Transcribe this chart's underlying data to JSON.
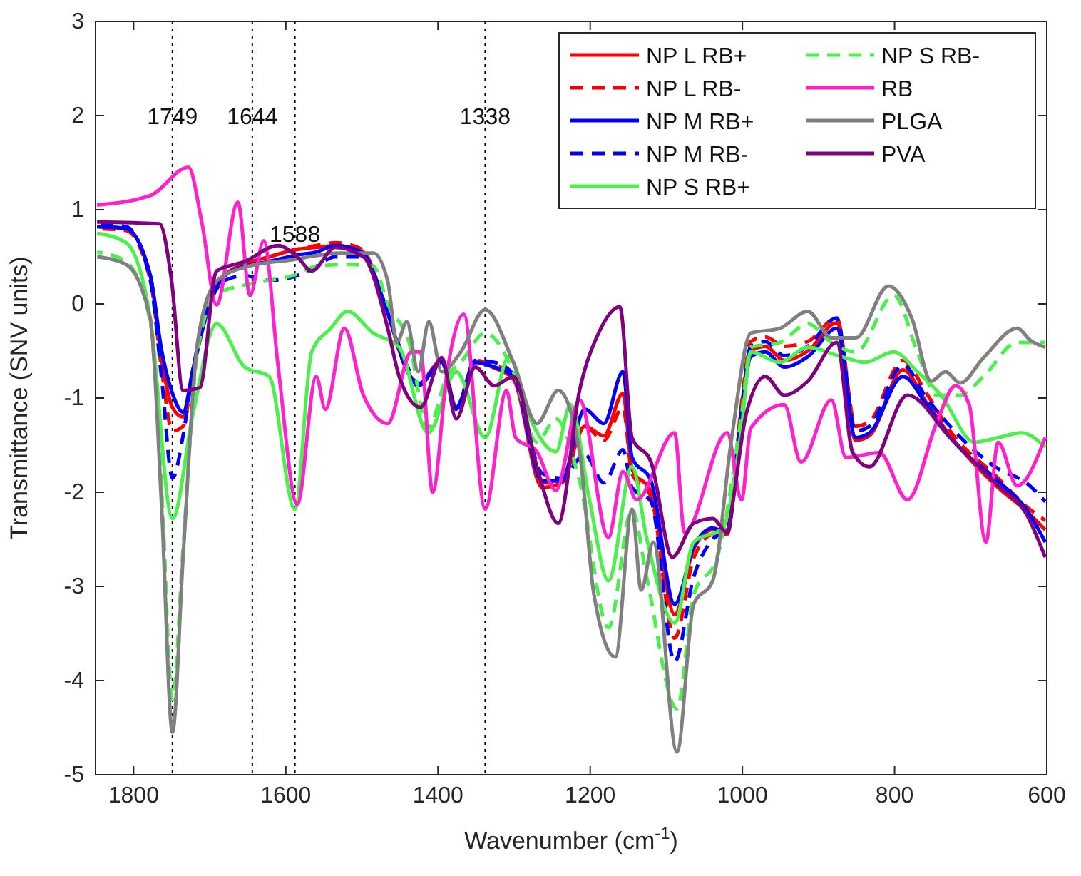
{
  "chart_data": {
    "type": "line",
    "xlabel": "Wavenumber (cm$^{-1}$)",
    "ylabel": "Transmittance (SNV units)",
    "xlim": [
      1850,
      600
    ],
    "xticks": [
      1800,
      1600,
      1400,
      1200,
      1000,
      800,
      600
    ],
    "ylim": [
      -5,
      3
    ],
    "yticks": [
      -5,
      -4,
      -3,
      -2,
      -1,
      0,
      1,
      2,
      3
    ],
    "grid": false,
    "legend": "top right",
    "marker": "none",
    "ref_lines": [
      {
        "axis": "x",
        "value": 1749,
        "color": "#000000",
        "line_style": "dotted"
      },
      {
        "axis": "x",
        "value": 1644,
        "color": "#000000",
        "line_style": "dotted"
      },
      {
        "axis": "x",
        "value": 1588,
        "color": "#000000",
        "line_style": "dotted"
      },
      {
        "axis": "x",
        "value": 1338,
        "color": "#000000",
        "line_style": "dotted"
      }
    ],
    "annotations": [
      {
        "text": "1749",
        "x": 1749,
        "y": 2
      },
      {
        "text": "1644",
        "x": 1644,
        "y": 2
      },
      {
        "text": "1588",
        "x": 1588,
        "y": 0.75
      },
      {
        "text": "1338",
        "x": 1338,
        "y": 2
      }
    ],
    "series": [
      {
        "name": "NP L RB+",
        "color": "#ff0000",
        "line_style": "solid",
        "x": [
          1848,
          1810,
          1778,
          1763,
          1749,
          1735,
          1722,
          1700,
          1680,
          1654,
          1622,
          1585,
          1560,
          1535,
          1500,
          1470,
          1441,
          1426,
          1395,
          1376,
          1351,
          1326,
          1301,
          1263,
          1238,
          1207,
          1182,
          1157,
          1145,
          1120,
          1089,
          1064,
          1039,
          1020,
          1001,
          989,
          970,
          945,
          914,
          876,
          851,
          833,
          789,
          758,
          727,
          664,
          627,
          602
        ],
        "values": [
          0.82,
          0.8,
          0.3,
          -0.6,
          -1.1,
          -1.2,
          -0.7,
          0.0,
          0.3,
          0.42,
          0.5,
          0.58,
          0.6,
          0.62,
          0.56,
          0.0,
          -0.7,
          -0.85,
          -0.6,
          -1.1,
          -0.62,
          -0.68,
          -0.8,
          -1.95,
          -1.9,
          -1.3,
          -1.4,
          -0.95,
          -1.75,
          -2.0,
          -3.3,
          -2.6,
          -2.4,
          -2.4,
          -1.1,
          -0.5,
          -0.45,
          -0.6,
          -0.5,
          -0.2,
          -1.45,
          -1.4,
          -0.7,
          -1.05,
          -1.4,
          -1.95,
          -2.2,
          -2.4
        ]
      },
      {
        "name": "NP L RB-",
        "color": "#ff0000",
        "line_style": "dashed",
        "x": [
          1848,
          1810,
          1778,
          1763,
          1749,
          1735,
          1722,
          1700,
          1680,
          1654,
          1622,
          1585,
          1560,
          1535,
          1500,
          1470,
          1441,
          1426,
          1395,
          1376,
          1351,
          1326,
          1301,
          1263,
          1238,
          1207,
          1182,
          1157,
          1145,
          1120,
          1089,
          1064,
          1039,
          1020,
          1001,
          989,
          970,
          945,
          914,
          876,
          851,
          833,
          789,
          758,
          727,
          664,
          627,
          602
        ],
        "values": [
          0.8,
          0.78,
          0.25,
          -0.7,
          -1.35,
          -1.3,
          -0.7,
          0.0,
          0.3,
          0.42,
          0.5,
          0.58,
          0.62,
          0.65,
          0.58,
          0.0,
          -0.7,
          -0.85,
          -0.6,
          -1.1,
          -0.6,
          -0.65,
          -0.75,
          -1.9,
          -1.9,
          -1.3,
          -1.45,
          -1.1,
          -1.8,
          -2.05,
          -3.55,
          -2.7,
          -2.45,
          -2.45,
          -1.05,
          -0.4,
          -0.35,
          -0.45,
          -0.4,
          -0.15,
          -1.3,
          -1.25,
          -0.6,
          -0.95,
          -1.35,
          -1.85,
          -2.15,
          -2.3
        ]
      },
      {
        "name": "NP M RB+",
        "color": "#0000ff",
        "line_style": "solid",
        "x": [
          1848,
          1810,
          1778,
          1763,
          1749,
          1735,
          1722,
          1700,
          1680,
          1654,
          1622,
          1585,
          1560,
          1535,
          1500,
          1470,
          1441,
          1426,
          1395,
          1376,
          1351,
          1326,
          1301,
          1263,
          1238,
          1207,
          1182,
          1157,
          1145,
          1120,
          1089,
          1064,
          1039,
          1020,
          1001,
          989,
          970,
          945,
          914,
          876,
          851,
          833,
          789,
          758,
          727,
          664,
          627,
          602
        ],
        "values": [
          0.82,
          0.8,
          0.3,
          -0.5,
          -0.95,
          -1.15,
          -0.7,
          0.0,
          0.3,
          0.4,
          0.45,
          0.52,
          0.55,
          0.62,
          0.55,
          0.0,
          -0.7,
          -0.87,
          -0.62,
          -1.12,
          -0.62,
          -0.67,
          -0.77,
          -1.88,
          -1.88,
          -1.12,
          -1.27,
          -0.72,
          -1.63,
          -1.88,
          -3.19,
          -2.58,
          -2.38,
          -2.43,
          -1.17,
          -0.56,
          -0.51,
          -0.67,
          -0.56,
          -0.26,
          -1.42,
          -1.37,
          -0.77,
          -1.07,
          -1.42,
          -1.88,
          -2.18,
          -2.53
        ]
      },
      {
        "name": "NP M RB-",
        "color": "#0000ff",
        "line_style": "dashed",
        "x": [
          1848,
          1810,
          1778,
          1763,
          1749,
          1735,
          1722,
          1700,
          1680,
          1654,
          1622,
          1585,
          1560,
          1535,
          1500,
          1470,
          1441,
          1426,
          1395,
          1376,
          1351,
          1326,
          1301,
          1263,
          1238,
          1207,
          1182,
          1157,
          1145,
          1120,
          1089,
          1064,
          1039,
          1020,
          1001,
          989,
          970,
          945,
          914,
          876,
          851,
          833,
          789,
          758,
          727,
          664,
          627,
          602
        ],
        "values": [
          0.85,
          0.82,
          0.25,
          -0.8,
          -1.85,
          -1.4,
          -0.7,
          0.0,
          0.25,
          0.3,
          0.25,
          0.3,
          0.4,
          0.5,
          0.5,
          0.0,
          -0.65,
          -0.85,
          -0.62,
          -1.1,
          -0.6,
          -0.62,
          -0.75,
          -1.8,
          -1.85,
          -1.6,
          -1.9,
          -1.55,
          -1.95,
          -2.1,
          -3.8,
          -2.9,
          -2.5,
          -2.4,
          -1.1,
          -0.45,
          -0.4,
          -0.55,
          -0.45,
          -0.15,
          -1.35,
          -1.3,
          -0.65,
          -1.0,
          -1.3,
          -1.75,
          -1.9,
          -2.1
        ]
      },
      {
        "name": "NP S RB+",
        "color": "#4cf04c",
        "line_style": "solid",
        "x": [
          1848,
          1810,
          1778,
          1749,
          1722,
          1691,
          1654,
          1622,
          1588,
          1566,
          1541,
          1519,
          1485,
          1451,
          1413,
          1376,
          1338,
          1307,
          1276,
          1245,
          1226,
          1201,
          1176,
          1145,
          1126,
          1089,
          1064,
          1026,
          1001,
          989,
          951,
          914,
          870,
          839,
          801,
          770,
          739,
          695,
          664,
          633,
          602
        ],
        "values": [
          0.75,
          0.65,
          -0.16,
          -2.28,
          -1.17,
          -0.21,
          -0.67,
          -0.77,
          -2.18,
          -0.51,
          -0.26,
          -0.08,
          -0.31,
          -0.46,
          -1.37,
          -0.72,
          -1.42,
          -0.56,
          -1.27,
          -1.57,
          -1.07,
          -2.08,
          -2.94,
          -1.73,
          -2.48,
          -3.39,
          -2.53,
          -2.38,
          -1.32,
          -0.51,
          -0.62,
          -0.46,
          -0.56,
          -0.62,
          -0.51,
          -0.72,
          -0.97,
          -1.47,
          -1.42,
          -1.37,
          -1.52
        ]
      },
      {
        "name": "NP S RB-",
        "color": "#4cf04c",
        "line_style": "dashed",
        "x": [
          1848,
          1810,
          1778,
          1763,
          1749,
          1735,
          1716,
          1691,
          1654,
          1622,
          1591,
          1560,
          1520,
          1485,
          1466,
          1438,
          1413,
          1388,
          1370,
          1338,
          1301,
          1270,
          1245,
          1214,
          1176,
          1145,
          1126,
          1086,
          1064,
          1033,
          1001,
          989,
          951,
          914,
          883,
          851,
          801,
          770,
          745,
          714,
          683,
          639,
          602
        ],
        "values": [
          0.55,
          0.45,
          -0.2,
          -2.0,
          -4.2,
          -2.6,
          -0.5,
          0.1,
          0.2,
          0.25,
          0.3,
          0.4,
          0.42,
          0.4,
          0.0,
          -0.41,
          -1.32,
          -0.77,
          -0.62,
          -0.31,
          -0.72,
          -1.47,
          -1.22,
          -1.88,
          -3.44,
          -2.18,
          -2.89,
          -4.3,
          -3.09,
          -2.69,
          -1.17,
          -0.46,
          -0.41,
          -0.21,
          -0.41,
          -0.51,
          0.09,
          -0.51,
          -0.97,
          -0.97,
          -0.77,
          -0.41,
          -0.41
        ]
      },
      {
        "name": "RB",
        "color": "#ff22cc",
        "line_style": "solid",
        "x": [
          1848,
          1778,
          1728,
          1710,
          1691,
          1663,
          1647,
          1629,
          1610,
          1585,
          1560,
          1548,
          1523,
          1498,
          1466,
          1435,
          1423,
          1407,
          1388,
          1366,
          1338,
          1310,
          1298,
          1270,
          1245,
          1214,
          1176,
          1157,
          1139,
          1089,
          1076,
          1020,
          1001,
          989,
          945,
          923,
          883,
          864,
          820,
          783,
          745,
          720,
          702,
          680,
          664,
          639,
          602
        ],
        "values": [
          1.05,
          1.15,
          1.45,
          0.85,
          -0.01,
          1.08,
          0.09,
          0.67,
          -0.67,
          -2.13,
          -0.77,
          -1.12,
          -0.26,
          -0.97,
          -1.27,
          -0.51,
          -0.51,
          -2.0,
          -0.72,
          -0.11,
          -2.18,
          -0.92,
          -1.42,
          -1.57,
          -1.98,
          -1.02,
          -2.48,
          -1.78,
          -2.08,
          -1.37,
          -2.43,
          -1.37,
          -2.08,
          -1.32,
          -1.07,
          -1.68,
          -1.02,
          -1.63,
          -1.58,
          -2.08,
          -1.27,
          -0.87,
          -1.07,
          -2.53,
          -1.47,
          -1.93,
          -1.42
        ]
      },
      {
        "name": "PLGA",
        "color": "#808080",
        "line_style": "solid",
        "x": [
          1848,
          1810,
          1778,
          1763,
          1749,
          1735,
          1716,
          1691,
          1654,
          1591,
          1529,
          1485,
          1466,
          1454,
          1441,
          1426,
          1412,
          1395,
          1370,
          1338,
          1301,
          1270,
          1242,
          1214,
          1195,
          1167,
          1145,
          1133,
          1117,
          1086,
          1064,
          1039,
          1014,
          989,
          951,
          914,
          883,
          851,
          808,
          777,
          752,
          733,
          714,
          683,
          639,
          621,
          602
        ],
        "values": [
          0.5,
          0.42,
          -0.16,
          -2.18,
          -4.55,
          -2.69,
          -0.41,
          0.24,
          0.39,
          0.47,
          0.54,
          0.54,
          0.24,
          -0.41,
          -0.19,
          -0.72,
          -0.19,
          -0.72,
          -0.51,
          -0.06,
          -0.62,
          -1.27,
          -0.92,
          -1.57,
          -3.09,
          -3.75,
          -2.18,
          -3.04,
          -2.53,
          -4.76,
          -3.19,
          -2.94,
          -1.42,
          -0.31,
          -0.26,
          -0.08,
          -0.36,
          -0.36,
          0.19,
          -0.16,
          -0.82,
          -0.72,
          -0.84,
          -0.57,
          -0.26,
          -0.39,
          -0.46
        ]
      },
      {
        "name": "PVA",
        "color": "#800080",
        "line_style": "solid",
        "x": [
          1848,
          1766,
          1750,
          1735,
          1713,
          1691,
          1654,
          1610,
          1585,
          1566,
          1535,
          1498,
          1466,
          1451,
          1423,
          1395,
          1376,
          1351,
          1326,
          1301,
          1270,
          1242,
          1214,
          1189,
          1161,
          1145,
          1120,
          1092,
          1064,
          1039,
          1020,
          1014,
          995,
          970,
          945,
          914,
          876,
          855,
          833,
          783,
          727,
          664,
          627,
          602
        ],
        "values": [
          0.87,
          0.85,
          0.24,
          -0.92,
          -0.89,
          0.35,
          0.45,
          0.62,
          0.5,
          0.35,
          0.6,
          0.5,
          -0.26,
          -0.77,
          -1.1,
          -0.57,
          -1.22,
          -0.67,
          -0.87,
          -0.77,
          -1.73,
          -2.33,
          -0.92,
          -0.31,
          -0.03,
          -1.42,
          -1.68,
          -2.69,
          -2.33,
          -2.28,
          -2.43,
          -2.18,
          -1.17,
          -0.77,
          -0.97,
          -0.82,
          -0.41,
          -1.58,
          -1.73,
          -0.97,
          -1.42,
          -1.93,
          -2.23,
          -2.69
        ]
      }
    ]
  }
}
